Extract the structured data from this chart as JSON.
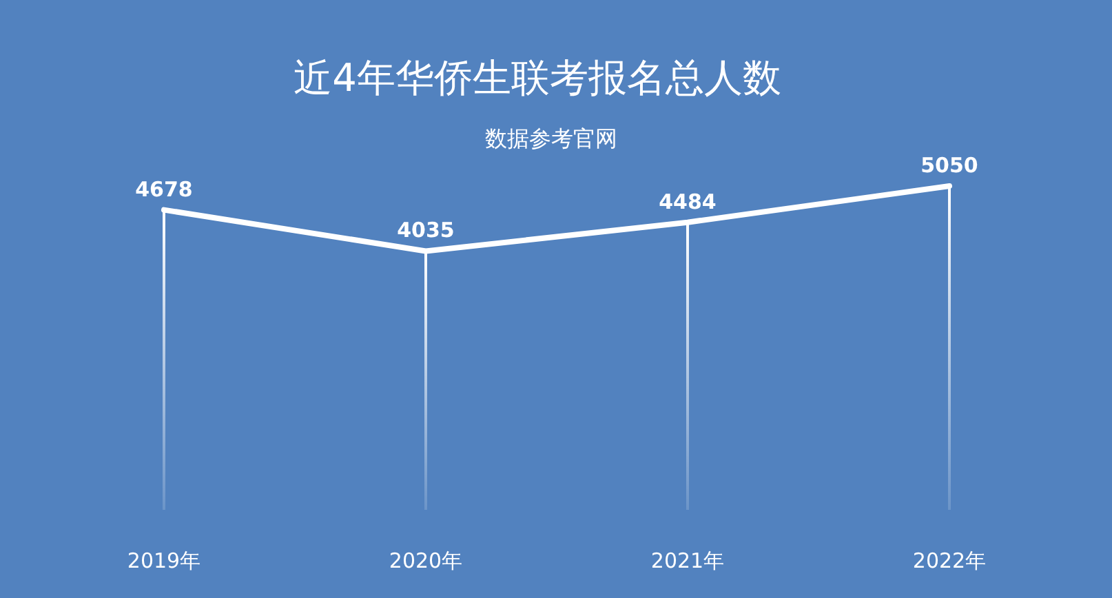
{
  "chart_data": {
    "type": "line",
    "title": "近4年华侨生联考报名总人数",
    "subtitle": "数据参考官网",
    "categories": [
      "2019年",
      "2020年",
      "2021年",
      "2022年"
    ],
    "series": [
      {
        "type": "bar",
        "color": "#ffffff",
        "values": [
          4678,
          4035,
          4484,
          5050
        ],
        "value_labels": [
          null,
          null,
          null,
          null
        ]
      },
      {
        "color": "#ffffff",
        "values": [
          4678,
          4035,
          4484,
          5050
        ],
        "value_labels": [
          "4678",
          "4035",
          "4484",
          "5050"
        ]
      }
    ],
    "grid": false,
    "legend": false,
    "marker": "none",
    "line_style": "solid"
  }
}
